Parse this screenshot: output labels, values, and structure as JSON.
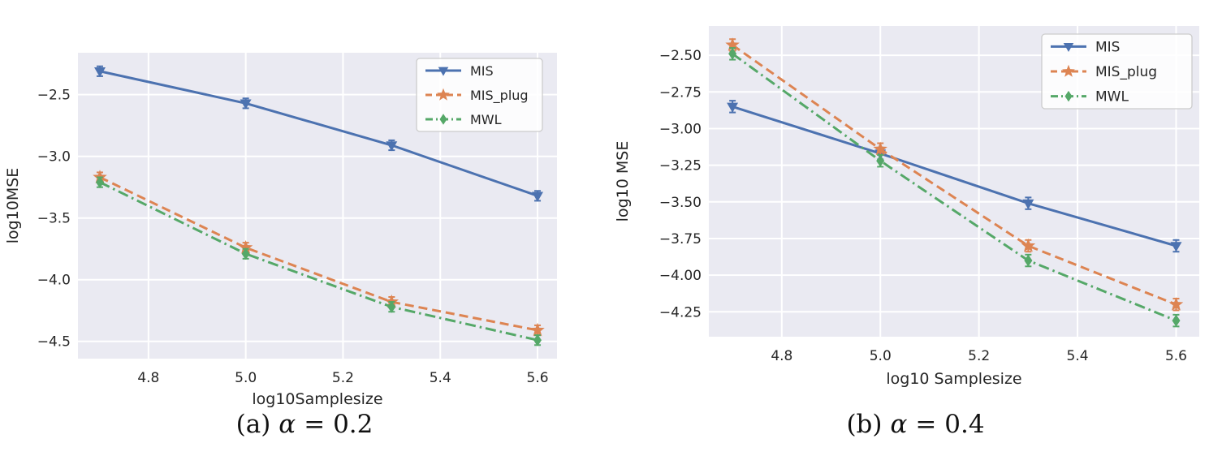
{
  "palette": {
    "figure_background": "#ffffff",
    "plot_background": "#EAEAF2",
    "grid_color": "#FFFFFF",
    "text_color": "#262626",
    "caption_color": "#111111",
    "legend_background": "#FFFFFF",
    "legend_border": "#CCCCCC",
    "series_blue": "#4C72B0",
    "series_orange": "#DD8452",
    "series_green": "#55A868"
  },
  "chart_data": [
    {
      "id": "alpha-0.2",
      "type": "line",
      "caption": {
        "prefix": "(a)",
        "alpha": "α",
        "value": "= 0.2"
      },
      "xlabel": "log10Samplesize",
      "ylabel": "log10MSE",
      "x": [
        4.7,
        5.0,
        5.3,
        5.6
      ],
      "xticks": [
        4.8,
        5.0,
        5.2,
        5.4,
        5.6
      ],
      "yticks": [
        -2.5,
        -3.0,
        -3.5,
        -4.0,
        -4.5
      ],
      "xtick_decimals": 1,
      "ytick_decimals": 1,
      "xlim": [
        4.655,
        5.64
      ],
      "ylim": [
        -4.64,
        -2.16
      ],
      "grid": true,
      "legend_position": "upper right",
      "yerr": 0.04,
      "series": [
        {
          "name": "MIS",
          "color": "#4C72B0",
          "linestyle": "solid",
          "marker": "triangle-down",
          "values": [
            -2.31,
            -2.57,
            -2.91,
            -3.32
          ]
        },
        {
          "name": "MIS_plug",
          "color": "#DD8452",
          "linestyle": "dashed",
          "marker": "star",
          "values": [
            -3.17,
            -3.74,
            -4.18,
            -4.41
          ]
        },
        {
          "name": "MWL",
          "color": "#55A868",
          "linestyle": "dashdot",
          "marker": "diamond",
          "values": [
            -3.21,
            -3.79,
            -4.22,
            -4.49
          ]
        }
      ]
    },
    {
      "id": "alpha-0.4",
      "type": "line",
      "caption": {
        "prefix": "(b)",
        "alpha": "α",
        "value": "= 0.4"
      },
      "xlabel": "log10 Samplesize",
      "ylabel": "log10 MSE",
      "x": [
        4.7,
        5.0,
        5.3,
        5.6
      ],
      "xticks": [
        4.8,
        5.0,
        5.2,
        5.4,
        5.6
      ],
      "yticks": [
        -2.5,
        -2.75,
        -3.0,
        -3.25,
        -3.5,
        -3.75,
        -4.0,
        -4.25
      ],
      "xtick_decimals": 1,
      "ytick_decimals": 2,
      "xlim": [
        4.652,
        5.647
      ],
      "ylim": [
        -4.42,
        -2.3
      ],
      "grid": true,
      "legend_position": "upper right",
      "yerr": 0.04,
      "series": [
        {
          "name": "MIS",
          "color": "#4C72B0",
          "linestyle": "solid",
          "marker": "triangle-down",
          "values": [
            -2.85,
            -3.17,
            -3.51,
            -3.8
          ]
        },
        {
          "name": "MIS_plug",
          "color": "#DD8452",
          "linestyle": "dashed",
          "marker": "star",
          "values": [
            -2.43,
            -3.14,
            -3.8,
            -4.2
          ]
        },
        {
          "name": "MWL",
          "color": "#55A868",
          "linestyle": "dashdot",
          "marker": "diamond",
          "values": [
            -2.49,
            -3.22,
            -3.9,
            -4.31
          ]
        }
      ]
    }
  ]
}
